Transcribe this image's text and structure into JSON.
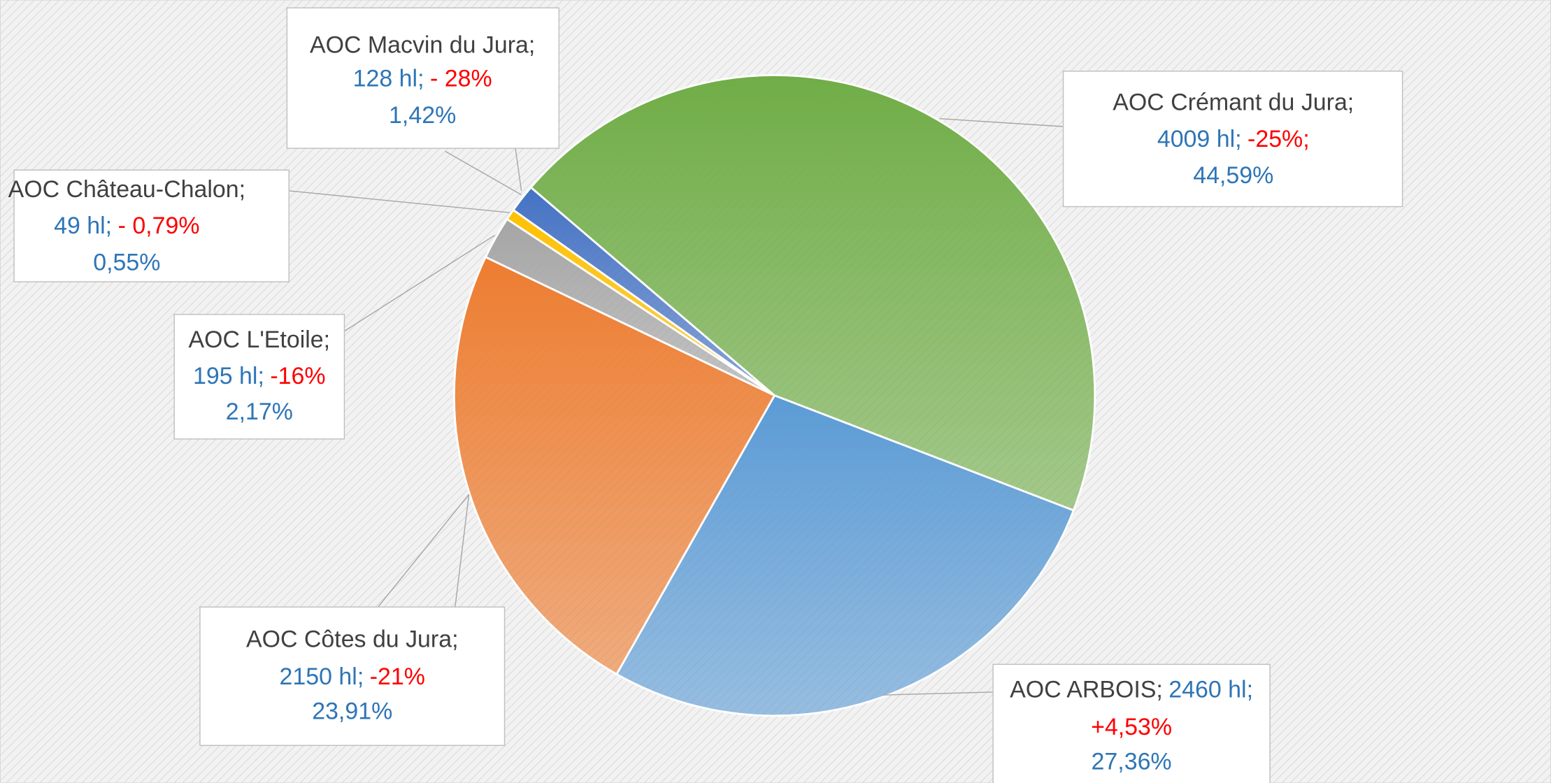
{
  "chart_data": {
    "type": "pie",
    "categories": [
      "AOC Crémant du Jura;",
      "AOC ARBOIS;",
      "AOC Côtes du Jura;",
      "AOC L'Etoile;",
      "AOC Château-Chalon;",
      "AOC Macvin du Jura;"
    ],
    "volumes": [
      "4009 hl;",
      "2460 hl;",
      "2150 hl;",
      "195 hl;",
      "49 hl;",
      "128 hl;"
    ],
    "changes": [
      "-25%;",
      "+4,53%",
      "-21%",
      "-16%",
      "- 0,79%",
      "- 28%"
    ],
    "values": [
      44.59,
      27.36,
      23.91,
      2.17,
      0.55,
      1.42
    ],
    "value_labels": [
      "44,59%",
      "27,36%",
      "23,91%",
      "2,17%",
      "0,55%",
      "1,42%"
    ],
    "colors": [
      "#70ad47",
      "#5b9bd5",
      "#ed7d31",
      "#a5a5a5",
      "#ffc000",
      "#4472c4"
    ]
  }
}
